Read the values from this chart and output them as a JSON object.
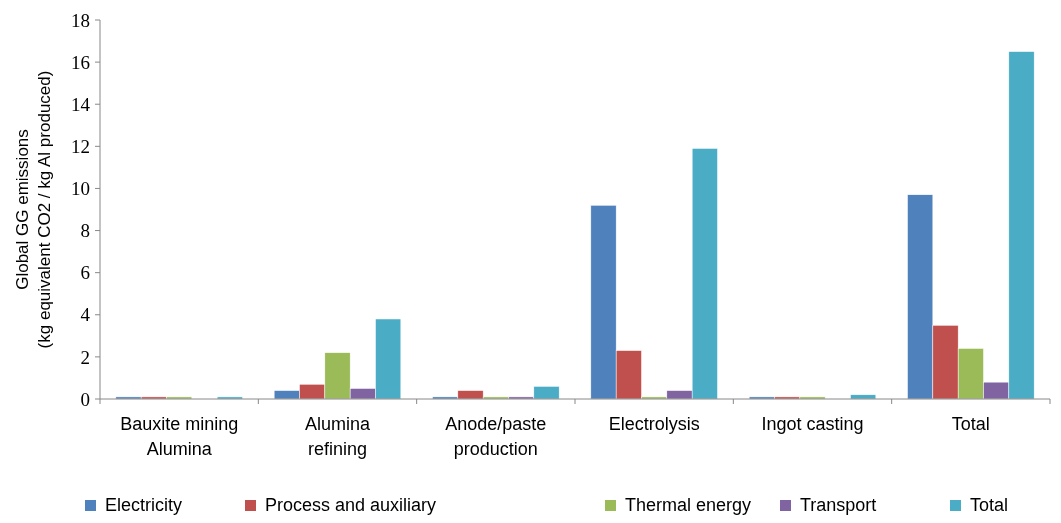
{
  "chart_data": {
    "type": "bar",
    "ylabel": "Global GG emissions\n(kg equivalent CO2 / kg Al produced)",
    "categories": [
      "Bauxite mining Alumina",
      "Alumina refining",
      "Anode/paste production",
      "Electrolysis",
      "Ingot casting",
      "Total"
    ],
    "series": [
      {
        "name": "Electricity",
        "color": "#4f81bd",
        "values": [
          0.1,
          0.4,
          0.1,
          9.2,
          0.1,
          9.7
        ]
      },
      {
        "name": "Process and auxiliary",
        "color": "#c0504d",
        "values": [
          0.1,
          0.7,
          0.4,
          2.3,
          0.1,
          3.5
        ]
      },
      {
        "name": "Thermal energy",
        "color": "#9bbb59",
        "values": [
          0.1,
          2.2,
          0.1,
          0.1,
          0.1,
          2.4
        ]
      },
      {
        "name": "Transport",
        "color": "#8064a2",
        "values": [
          0,
          0.5,
          0.1,
          0.4,
          0,
          0.8
        ]
      },
      {
        "name": "Total",
        "color": "#4bacc6",
        "values": [
          0.1,
          3.8,
          0.6,
          11.9,
          0.2,
          16.5
        ]
      }
    ],
    "ylim": [
      0,
      18
    ],
    "yticks": [
      0,
      2,
      4,
      6,
      8,
      10,
      12,
      14,
      16,
      18
    ],
    "grid": false,
    "legend": "bottom"
  }
}
